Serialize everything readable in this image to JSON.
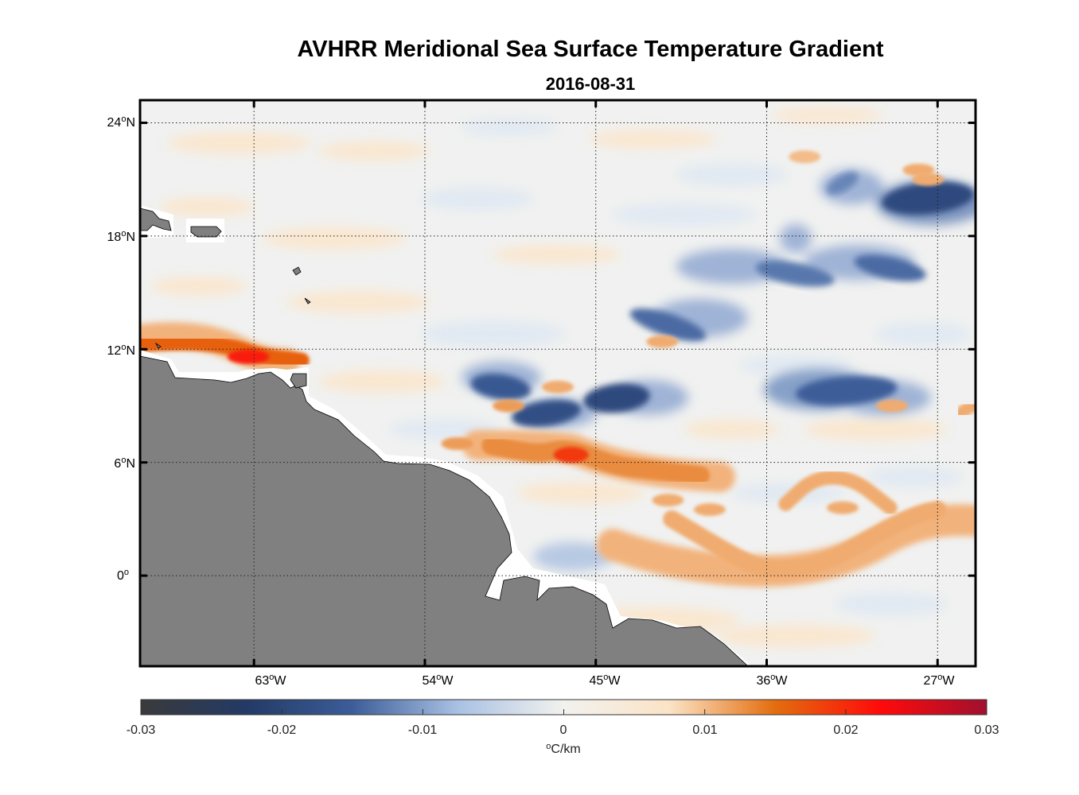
{
  "chart_data": {
    "type": "heatmap",
    "title": "AVHRR Meridional Sea Surface Temperature Gradient",
    "subtitle": "2016-08-31",
    "x_axis": {
      "range": [
        -69.0,
        -25.0
      ],
      "ticks": [
        -63,
        -54,
        -45,
        -36,
        -27
      ],
      "tick_labels": [
        "63",
        "54",
        "45",
        "36",
        "27"
      ],
      "degree_symbol": "o",
      "hemisphere": "W"
    },
    "y_axis": {
      "range": [
        -4.8,
        25.2
      ],
      "ticks": [
        24,
        18,
        12,
        6,
        0
      ],
      "tick_labels": [
        "24",
        "18",
        "12",
        "6",
        "0"
      ],
      "degree_symbol": "o",
      "hemispheres": [
        "N",
        "N",
        "N",
        "N",
        ""
      ]
    },
    "grid": "dotted",
    "colorbar": {
      "range": [
        -0.03,
        0.03
      ],
      "tick_values": [
        -0.03,
        -0.02,
        -0.01,
        0,
        0.01,
        0.02,
        0.03
      ],
      "tick_labels": [
        "-0.03",
        "-0.02",
        "-0.01",
        "0",
        "0.01",
        "0.02",
        "0.03"
      ],
      "unit_degree": "o",
      "unit_rest": "C/km",
      "colors": [
        "#3a3a3a",
        "#233a66",
        "#3c5d99",
        "#a9c1e3",
        "#f2f2ee",
        "#fbe3c6",
        "#e36d0e",
        "#ff0a0a",
        "#a01030"
      ]
    },
    "features": {
      "positive": [
        {
          "name": "equatorial-band",
          "points": [
            [
              -41,
              3.0
            ],
            [
              -38,
              1.2
            ],
            [
              -36,
              0.2
            ],
            [
              -33,
              0.6
            ],
            [
              -30,
              2.3
            ],
            [
              -28,
              3.3
            ],
            [
              -27,
              3.5
            ]
          ],
          "value": 0.011
        },
        {
          "name": "retroflection-band",
          "points": [
            [
              -50.5,
              6.9
            ],
            [
              -48,
              6.4
            ],
            [
              -46.5,
              6.8
            ],
            [
              -44,
              5.8
            ],
            [
              -42,
              5.6
            ],
            [
              -39.5,
              5.3
            ]
          ],
          "value": 0.013
        },
        {
          "name": "caribbean-front",
          "points": [
            [
              -69,
              12.3
            ],
            [
              -66,
              12.4
            ],
            [
              -64,
              12.1
            ],
            [
              -62.5,
              11.6
            ],
            [
              -60.5,
              11.4
            ]
          ],
          "value": 0.016
        },
        {
          "name": "south-atlantic-arc",
          "points": [
            [
              -35,
              3.8
            ],
            [
              -33.5,
              5.2
            ],
            [
              -31.5,
              5.2
            ],
            [
              -29.5,
              3.6
            ]
          ],
          "value": 0.011
        },
        {
          "name": "east-margin",
          "points": [
            [
              -25.8,
              8.6
            ],
            [
              -25.2,
              9.0
            ]
          ],
          "value": 0.011
        }
      ],
      "negative": [
        {
          "name": "blob-1",
          "center": [
            -47.6,
            8.6
          ],
          "value": -0.018
        },
        {
          "name": "blob-2",
          "center": [
            -43.9,
            9.4
          ],
          "value": -0.019
        },
        {
          "name": "blob-3",
          "center": [
            -50.0,
            10.0
          ],
          "value": -0.016
        },
        {
          "name": "blob-4",
          "center": [
            -41.2,
            13.3
          ],
          "value": -0.014
        },
        {
          "name": "blob-5",
          "center": [
            -31.8,
            9.8
          ],
          "value": -0.015
        },
        {
          "name": "blob-6",
          "center": [
            -27.5,
            20.0
          ],
          "value": -0.019
        },
        {
          "name": "blob-7",
          "center": [
            -34.5,
            16.0
          ],
          "value": -0.013
        },
        {
          "name": "blob-8",
          "center": [
            -29.5,
            16.3
          ],
          "value": -0.014
        },
        {
          "name": "blob-9",
          "center": [
            -32.0,
            20.8
          ],
          "value": -0.012
        }
      ]
    }
  }
}
